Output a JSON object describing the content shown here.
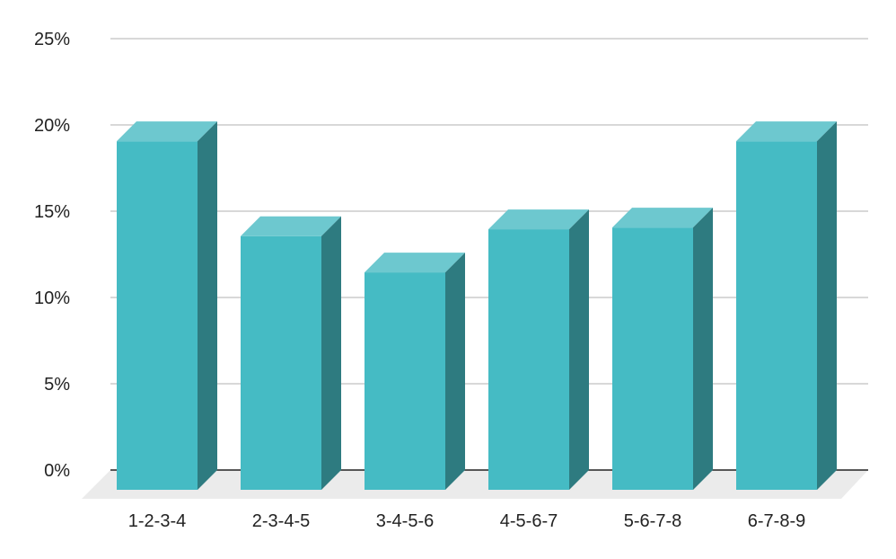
{
  "chart_data": {
    "type": "bar",
    "categories": [
      "1-2-3-4",
      "2-3-4-5",
      "3-4-5-6",
      "4-5-6-7",
      "5-6-7-8",
      "6-7-8-9"
    ],
    "values": [
      20.2,
      14.7,
      12.6,
      15.1,
      15.2,
      20.2
    ],
    "ylim": [
      0,
      25
    ],
    "yticks": [
      0,
      5,
      10,
      15,
      20,
      25
    ],
    "ytick_labels": [
      "0%",
      "5%",
      "10%",
      "15%",
      "20%",
      "25%"
    ],
    "title": "",
    "xlabel": "",
    "ylabel": "",
    "grid": true,
    "style": "3d-column",
    "colors": {
      "front": "#45bbc4",
      "top": "#6dc8cf",
      "side": "#2e7b80",
      "floor": "#ebebeb",
      "grid": "#cccccc",
      "axis": "#222222"
    }
  }
}
